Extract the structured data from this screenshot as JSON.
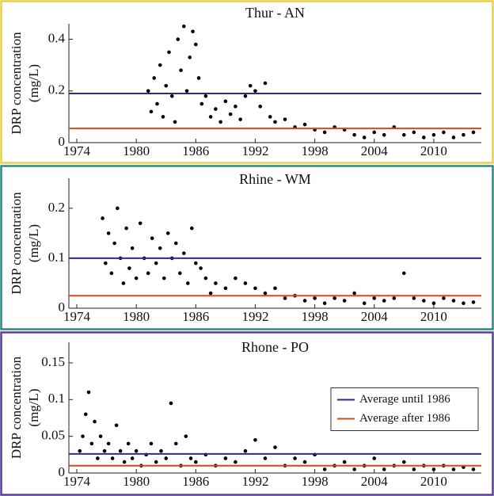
{
  "chart_data": [
    {
      "type": "scatter",
      "title": "Thur - AN",
      "ylabel": [
        "DRP concentration",
        "(mg/L)"
      ],
      "frame_color": "#e6d24a",
      "point_color": "#000000",
      "xlim": [
        1973.2,
        2014.8
      ],
      "xticks": [
        1974,
        1980,
        1986,
        1992,
        1998,
        2004,
        2010
      ],
      "ylim": [
        0,
        0.46
      ],
      "yticks": [
        0,
        0.2,
        0.4
      ],
      "x": [
        1981.2,
        1981.5,
        1981.8,
        1982.1,
        1982.4,
        1982.7,
        1983.0,
        1983.3,
        1983.6,
        1983.9,
        1984.2,
        1984.5,
        1984.8,
        1985.1,
        1985.4,
        1985.7,
        1986.0,
        1986.3,
        1986.6,
        1987.0,
        1987.5,
        1988.0,
        1988.5,
        1989.0,
        1989.5,
        1990.0,
        1990.5,
        1991.0,
        1991.5,
        1992.0,
        1992.5,
        1993.0,
        1993.5,
        1994.0,
        1995.0,
        1996.0,
        1997.0,
        1998.0,
        1999.0,
        2000.0,
        2001.0,
        2002.0,
        2003.0,
        2004.0,
        2005.0,
        2006.0,
        2007.0,
        2008.0,
        2009.0,
        2010.0,
        2011.0,
        2012.0,
        2013.0,
        2014.0
      ],
      "values": [
        0.2,
        0.12,
        0.25,
        0.15,
        0.3,
        0.1,
        0.22,
        0.35,
        0.18,
        0.08,
        0.4,
        0.28,
        0.45,
        0.2,
        0.33,
        0.43,
        0.38,
        0.25,
        0.15,
        0.18,
        0.1,
        0.13,
        0.08,
        0.16,
        0.11,
        0.14,
        0.09,
        0.18,
        0.22,
        0.2,
        0.14,
        0.23,
        0.1,
        0.08,
        0.09,
        0.06,
        0.07,
        0.05,
        0.04,
        0.06,
        0.05,
        0.03,
        0.02,
        0.04,
        0.03,
        0.06,
        0.03,
        0.04,
        0.02,
        0.03,
        0.04,
        0.02,
        0.03,
        0.04
      ],
      "hlines": [
        {
          "value": 0.19,
          "color": "#3b2393"
        },
        {
          "value": 0.055,
          "color": "#d9481c"
        }
      ]
    },
    {
      "type": "scatter",
      "title": "Rhine - WM",
      "ylabel": [
        "DRP concentration",
        "(mg/L)"
      ],
      "frame_color": "#2a8a80",
      "point_color": "#000000",
      "xlim": [
        1973.2,
        2014.8
      ],
      "xticks": [
        1974,
        1980,
        1986,
        1992,
        1998,
        2004,
        2010
      ],
      "ylim": [
        0,
        0.26
      ],
      "yticks": [
        0,
        0.1,
        0.2
      ],
      "x": [
        1976.6,
        1976.9,
        1977.2,
        1977.5,
        1977.8,
        1978.1,
        1978.4,
        1978.7,
        1979.0,
        1979.3,
        1979.6,
        1980.0,
        1980.4,
        1980.8,
        1981.2,
        1981.6,
        1982.0,
        1982.4,
        1982.8,
        1983.2,
        1983.6,
        1984.0,
        1984.4,
        1984.8,
        1985.2,
        1985.6,
        1986.0,
        1986.5,
        1987.0,
        1987.5,
        1988.0,
        1989.0,
        1990.0,
        1991.0,
        1992.0,
        1993.0,
        1994.0,
        1995.0,
        1996.0,
        1997.0,
        1998.0,
        1999.0,
        2000.0,
        2001.0,
        2002.0,
        2003.0,
        2004.0,
        2005.0,
        2006.0,
        2007.0,
        2008.0,
        2009.0,
        2010.0,
        2011.0,
        2012.0,
        2013.0,
        2014.0
      ],
      "values": [
        0.18,
        0.09,
        0.15,
        0.07,
        0.13,
        0.2,
        0.1,
        0.05,
        0.16,
        0.08,
        0.12,
        0.06,
        0.17,
        0.1,
        0.07,
        0.14,
        0.09,
        0.12,
        0.06,
        0.15,
        0.1,
        0.13,
        0.07,
        0.11,
        0.05,
        0.16,
        0.09,
        0.08,
        0.06,
        0.03,
        0.05,
        0.04,
        0.06,
        0.05,
        0.04,
        0.03,
        0.04,
        0.02,
        0.025,
        0.015,
        0.02,
        0.01,
        0.02,
        0.015,
        0.03,
        0.01,
        0.02,
        0.015,
        0.02,
        0.07,
        0.02,
        0.015,
        0.01,
        0.02,
        0.015,
        0.01,
        0.012
      ],
      "hlines": [
        {
          "value": 0.1,
          "color": "#3b2393"
        },
        {
          "value": 0.025,
          "color": "#d9481c"
        }
      ]
    },
    {
      "type": "scatter",
      "title": "Rhone - PO",
      "ylabel": [
        "DRP concentration",
        "(mg/L)"
      ],
      "frame_color": "#5a3e97",
      "point_color": "#000000",
      "xlim": [
        1973.2,
        2014.8
      ],
      "xticks": [
        1974,
        1980,
        1986,
        1992,
        1998,
        2004,
        2010
      ],
      "ylim": [
        0,
        0.178
      ],
      "yticks": [
        0,
        0.05,
        0.1,
        0.15
      ],
      "x": [
        1974.3,
        1974.6,
        1974.9,
        1975.2,
        1975.5,
        1975.8,
        1976.1,
        1976.4,
        1976.8,
        1977.2,
        1977.6,
        1978.0,
        1978.4,
        1978.8,
        1979.2,
        1979.6,
        1980.0,
        1980.5,
        1981.0,
        1981.5,
        1982.0,
        1982.5,
        1983.0,
        1983.5,
        1984.0,
        1984.5,
        1985.0,
        1985.5,
        1986.0,
        1987.0,
        1988.0,
        1989.0,
        1990.0,
        1991.0,
        1992.0,
        1993.0,
        1994.0,
        1995.0,
        1996.0,
        1997.0,
        1998.0,
        1999.0,
        2000.0,
        2001.0,
        2002.0,
        2003.0,
        2004.0,
        2005.0,
        2006.0,
        2007.0,
        2008.0,
        2009.0,
        2010.0,
        2011.0,
        2012.0,
        2013.0,
        2014.0
      ],
      "values": [
        0.03,
        0.05,
        0.08,
        0.11,
        0.04,
        0.07,
        0.02,
        0.05,
        0.03,
        0.04,
        0.02,
        0.065,
        0.03,
        0.015,
        0.04,
        0.02,
        0.03,
        0.01,
        0.025,
        0.04,
        0.015,
        0.03,
        0.02,
        0.095,
        0.04,
        0.01,
        0.05,
        0.02,
        0.015,
        0.025,
        0.01,
        0.02,
        0.015,
        0.03,
        0.045,
        0.02,
        0.035,
        0.01,
        0.02,
        0.015,
        0.025,
        0.005,
        0.01,
        0.015,
        0.005,
        0.01,
        0.02,
        0.005,
        0.01,
        0.015,
        0.005,
        0.01,
        0.005,
        0.01,
        0.005,
        0.008,
        0.005
      ],
      "hlines": [
        {
          "value": 0.026,
          "color": "#3b2393"
        },
        {
          "value": 0.01,
          "color": "#d9481c"
        }
      ],
      "legend": {
        "position": "right",
        "entries": [
          {
            "name": "Average until 1986",
            "color": "#3b2393"
          },
          {
            "name": "Average after 1986",
            "color": "#d9481c"
          }
        ]
      }
    }
  ]
}
